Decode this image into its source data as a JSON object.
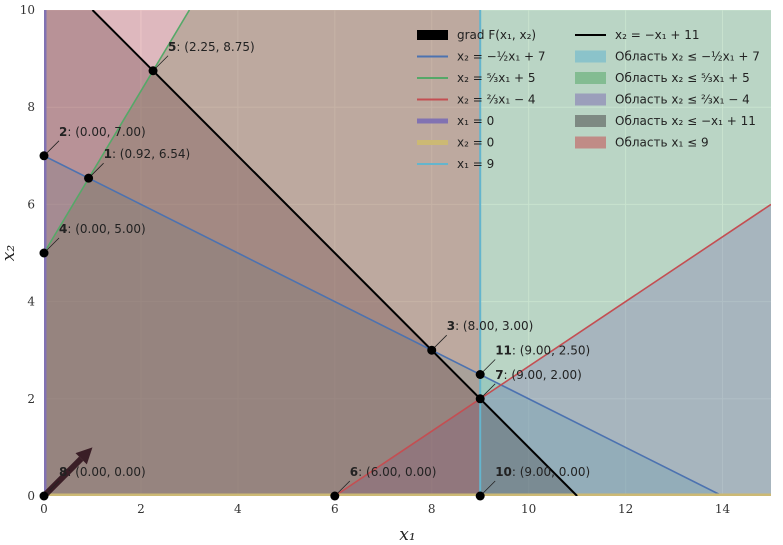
{
  "chart_data": {
    "type": "line",
    "xlabel": "x₁",
    "ylabel": "x₂",
    "xlim": [
      0,
      15
    ],
    "ylim": [
      0,
      10
    ],
    "x_ticks": [
      0,
      2,
      4,
      6,
      8,
      10,
      12,
      14
    ],
    "y_ticks": [
      0,
      2,
      4,
      6,
      8,
      10
    ],
    "grid": true,
    "legend_position": "top-right",
    "regions": [
      {
        "name": "Область x₂ ≤ −½x₁ + 7",
        "color": "#64b5cd",
        "opacity": 0.32,
        "polygon": [
          [
            0,
            0
          ],
          [
            15,
            0
          ],
          [
            15,
            -0.5
          ],
          [
            0,
            7
          ]
        ]
      },
      {
        "name": "Область x₂ ≤ ⁵⁄₃x₁ + 5",
        "color": "#55a868",
        "opacity": 0.32,
        "polygon": [
          [
            0,
            0
          ],
          [
            15,
            0
          ],
          [
            15,
            10
          ],
          [
            3,
            10
          ],
          [
            0,
            5
          ]
        ]
      },
      {
        "name": "Область x₂ ≤ ⅔x₁ − 4",
        "color": "#8172b2",
        "opacity": 0.32,
        "polygon": [
          [
            6,
            0
          ],
          [
            15,
            0
          ],
          [
            15,
            6
          ]
        ]
      },
      {
        "name": "Область x₂ ≤ −x₁ + 11",
        "color": "#4c4c4c",
        "opacity": 0.35,
        "polygon": [
          [
            0,
            0
          ],
          [
            11,
            0
          ],
          [
            1,
            10
          ],
          [
            0,
            10
          ]
        ]
      },
      {
        "name": "Область x₁ ≤ 9",
        "color": "#c44e52",
        "opacity": 0.32,
        "polygon": [
          [
            0,
            0
          ],
          [
            9,
            0
          ],
          [
            9,
            10
          ],
          [
            0,
            10
          ]
        ]
      }
    ],
    "lines": [
      {
        "name": "x₂ = −½x₁ + 7",
        "color": "#4c72b0",
        "width": 1.6,
        "points": [
          [
            0,
            7
          ],
          [
            14,
            0
          ]
        ]
      },
      {
        "name": "x₂ = ⁵⁄₃x₁ + 5",
        "color": "#55a868",
        "width": 1.6,
        "points": [
          [
            0,
            5
          ],
          [
            3,
            10
          ]
        ]
      },
      {
        "name": "x₂ = ⅔x₁ − 4",
        "color": "#c44e52",
        "width": 1.6,
        "points": [
          [
            6,
            0
          ],
          [
            15,
            6
          ]
        ]
      },
      {
        "name": "x₁ = 0",
        "color": "#8172b2",
        "width": 5,
        "points": [
          [
            0,
            0
          ],
          [
            0,
            10
          ]
        ]
      },
      {
        "name": "x₂ = 0",
        "color": "#ccb974",
        "width": 5,
        "points": [
          [
            0,
            0
          ],
          [
            15,
            0
          ]
        ]
      },
      {
        "name": "x₁ = 9",
        "color": "#64b5cd",
        "width": 2,
        "points": [
          [
            9,
            0
          ],
          [
            9,
            10
          ]
        ]
      },
      {
        "name": "x₂ = −x₁ + 11",
        "color": "#000000",
        "width": 2,
        "points": [
          [
            1,
            10
          ],
          [
            11,
            0
          ]
        ]
      }
    ],
    "gradient": {
      "name": "grad F(x₁, x₂)",
      "from": [
        0,
        0
      ],
      "to": [
        1,
        1
      ]
    },
    "points": [
      {
        "id": "1",
        "coords": "(0.92, 6.54)",
        "x": 0.92,
        "y": 6.54
      },
      {
        "id": "2",
        "coords": "(0.00, 7.00)",
        "x": 0,
        "y": 7
      },
      {
        "id": "3",
        "coords": "(8.00, 3.00)",
        "x": 8,
        "y": 3
      },
      {
        "id": "4",
        "coords": "(0.00, 5.00)",
        "x": 0,
        "y": 5
      },
      {
        "id": "5",
        "coords": "(2.25, 8.75)",
        "x": 2.25,
        "y": 8.75
      },
      {
        "id": "6",
        "coords": "(6.00, 0.00)",
        "x": 6,
        "y": 0
      },
      {
        "id": "7",
        "coords": "(9.00, 2.00)",
        "x": 9,
        "y": 2
      },
      {
        "id": "8",
        "coords": "(0.00, 0.00)",
        "x": 0,
        "y": 0
      },
      {
        "id": "10",
        "coords": "(9.00, 0.00)",
        "x": 9,
        "y": 0
      },
      {
        "id": "11",
        "coords": "(9.00, 2.50)",
        "x": 9,
        "y": 2.5
      }
    ]
  }
}
